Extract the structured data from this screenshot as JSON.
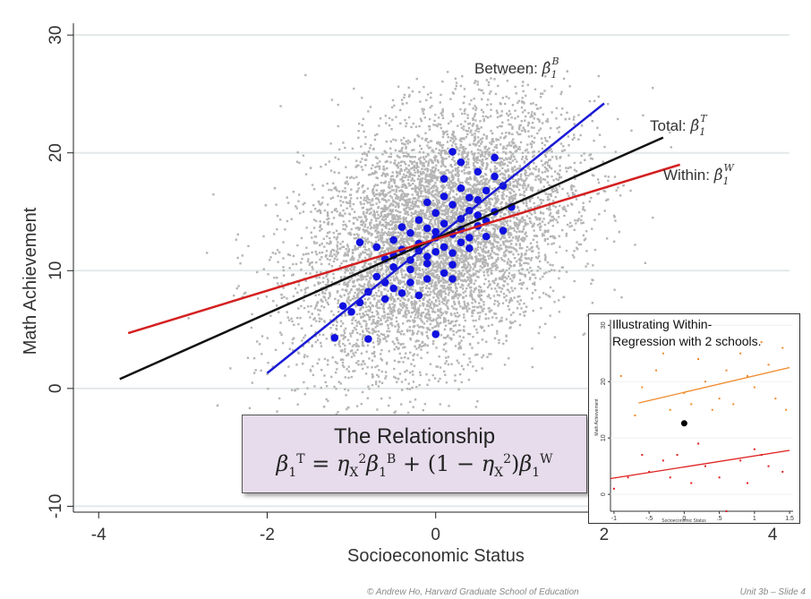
{
  "chart_data": {
    "type": "scatter",
    "xlabel": "Socioeconomic Status",
    "ylabel": "Math Achievement",
    "xlim": [
      -4.3,
      4.2
    ],
    "ylim": [
      -10.5,
      31
    ],
    "x_ticks": [
      -4,
      -2,
      0,
      2,
      4
    ],
    "y_ticks": [
      -10,
      0,
      10,
      20,
      30
    ],
    "x_tick_labels": [
      "-4",
      "-2",
      "0",
      "2",
      "4"
    ],
    "y_tick_labels": [
      "-10",
      "0",
      "10",
      "20",
      "30"
    ],
    "grid": "horizontal",
    "series": [
      {
        "kind": "student-scatter",
        "color": "#b5b5b5",
        "center": [
          0,
          12.8
        ],
        "approx_n": 7000
      },
      {
        "kind": "school-means",
        "color": "#1010e0",
        "points": [
          [
            -1.2,
            4.3
          ],
          [
            -0.8,
            4.2
          ],
          [
            0.0,
            4.6
          ],
          [
            -1.0,
            6.5
          ],
          [
            -0.9,
            7.3
          ],
          [
            -0.6,
            7.6
          ],
          [
            -0.5,
            8.5
          ],
          [
            -0.3,
            9.0
          ],
          [
            -0.1,
            9.3
          ],
          [
            0.1,
            9.8
          ],
          [
            0.2,
            10.5
          ],
          [
            -0.7,
            9.5
          ],
          [
            -0.5,
            10.3
          ],
          [
            -0.3,
            10.9
          ],
          [
            -0.1,
            11.2
          ],
          [
            0.0,
            11.6
          ],
          [
            0.1,
            12.0
          ],
          [
            0.3,
            12.4
          ],
          [
            0.4,
            12.8
          ],
          [
            -0.6,
            11.0
          ],
          [
            -0.4,
            11.8
          ],
          [
            -0.2,
            12.3
          ],
          [
            0.0,
            12.8
          ],
          [
            0.2,
            13.1
          ],
          [
            0.3,
            13.5
          ],
          [
            0.5,
            13.8
          ],
          [
            -0.3,
            13.2
          ],
          [
            -0.1,
            13.6
          ],
          [
            0.1,
            14.0
          ],
          [
            0.3,
            14.4
          ],
          [
            0.5,
            14.7
          ],
          [
            0.7,
            15.0
          ],
          [
            0.2,
            15.6
          ],
          [
            0.4,
            16.2
          ],
          [
            0.6,
            16.8
          ],
          [
            0.8,
            17.2
          ],
          [
            0.1,
            17.8
          ],
          [
            0.5,
            18.4
          ],
          [
            0.3,
            19.2
          ],
          [
            0.7,
            19.6
          ],
          [
            0.2,
            20.1
          ],
          [
            -0.9,
            12.4
          ],
          [
            -0.7,
            12.0
          ],
          [
            -0.5,
            12.6
          ],
          [
            -0.2,
            14.3
          ],
          [
            0.0,
            14.9
          ],
          [
            -0.4,
            13.7
          ],
          [
            0.6,
            14.2
          ],
          [
            0.9,
            15.4
          ],
          [
            -0.3,
            10.1
          ],
          [
            -0.1,
            10.6
          ],
          [
            0.2,
            11.5
          ],
          [
            0.4,
            11.9
          ],
          [
            -0.6,
            9.0
          ],
          [
            -0.8,
            8.2
          ],
          [
            0.6,
            12.9
          ],
          [
            0.8,
            13.4
          ],
          [
            0.1,
            16.3
          ],
          [
            -0.1,
            15.8
          ],
          [
            0.3,
            17.0
          ],
          [
            -0.2,
            7.9
          ],
          [
            0.2,
            9.3
          ],
          [
            -1.1,
            7.0
          ],
          [
            -0.4,
            8.1
          ],
          [
            0.4,
            15.1
          ],
          [
            0.0,
            13.3
          ],
          [
            -0.2,
            11.7
          ],
          [
            0.5,
            16.0
          ],
          [
            0.7,
            18.0
          ],
          [
            -0.5,
            11.3
          ]
        ]
      },
      {
        "name": "Between",
        "kind": "line",
        "color": "#1a1ad6",
        "from": [
          -2.0,
          1.3
        ],
        "to": [
          2.0,
          24.2
        ]
      },
      {
        "name": "Total",
        "kind": "line",
        "color": "#111111",
        "from": [
          -3.75,
          0.8
        ],
        "to": [
          2.7,
          21.3
        ]
      },
      {
        "name": "Within",
        "kind": "line",
        "color": "#d42020",
        "from": [
          -3.65,
          4.7
        ],
        "to": [
          2.9,
          19.0
        ]
      }
    ],
    "annotations": [
      {
        "text": "Between: ",
        "math": "β̂",
        "sub": "1",
        "sup": "B"
      },
      {
        "text": "Total: ",
        "math": "β̂",
        "sub": "1",
        "sup": "T"
      },
      {
        "text": "Within: ",
        "math": "β̂",
        "sub": "1",
        "sup": "W"
      }
    ]
  },
  "formula_box": {
    "title": "The Relationship",
    "parts": {
      "beta": "β",
      "one": "1",
      "T": "T",
      "eq": " = ",
      "eta": "η",
      "X": "X",
      "two": "2",
      "B": "B",
      "plus": " + (1 − ",
      "close": ")",
      "W": "W"
    }
  },
  "inset": {
    "title_line1": "Illustrating Within-",
    "title_line2": "Regression with 2 schools.",
    "xlabel": "Socioeconomic Status",
    "ylabel": "Math Achievement",
    "x_tick_labels": [
      "-1",
      "-.5",
      "0",
      ".5",
      "1",
      "1.5"
    ],
    "y_tick_labels": [
      "0",
      "10",
      "20",
      "30"
    ],
    "xlim": [
      -1.05,
      1.55
    ],
    "ylim": [
      -3,
      31
    ],
    "school_a_color": "#f08a2a",
    "school_b_color": "#e02020",
    "school_a_points": [
      [
        -0.9,
        21
      ],
      [
        -0.6,
        19
      ],
      [
        -0.4,
        22
      ],
      [
        -0.2,
        15
      ],
      [
        0.0,
        18
      ],
      [
        0.2,
        24
      ],
      [
        0.3,
        20
      ],
      [
        0.5,
        17
      ],
      [
        0.6,
        22
      ],
      [
        0.8,
        25
      ],
      [
        1.0,
        19
      ],
      [
        1.2,
        23
      ],
      [
        1.4,
        26
      ],
      [
        0.1,
        16
      ],
      [
        -0.7,
        14
      ],
      [
        0.9,
        21
      ],
      [
        1.1,
        27
      ],
      [
        0.4,
        15
      ],
      [
        -0.3,
        25
      ],
      [
        1.3,
        17
      ],
      [
        0.7,
        16
      ],
      [
        1.45,
        15
      ]
    ],
    "school_b_points": [
      [
        -1.0,
        1
      ],
      [
        -0.8,
        3
      ],
      [
        -0.5,
        4
      ],
      [
        -0.3,
        6
      ],
      [
        -0.1,
        7
      ],
      [
        0.1,
        2
      ],
      [
        0.3,
        5
      ],
      [
        0.5,
        3
      ],
      [
        0.8,
        6
      ],
      [
        1.0,
        8
      ],
      [
        1.2,
        5
      ],
      [
        1.4,
        4
      ],
      [
        -0.6,
        7
      ],
      [
        0.2,
        9
      ],
      [
        0.6,
        -3
      ],
      [
        0.9,
        2
      ],
      [
        1.1,
        7
      ],
      [
        -0.2,
        3
      ]
    ],
    "school_a_line": {
      "from": [
        -0.65,
        16.2
      ],
      "to": [
        1.5,
        22.5
      ]
    },
    "school_b_line": {
      "from": [
        -1.05,
        2.8
      ],
      "to": [
        1.5,
        7.8
      ]
    },
    "mean_point": [
      0.0,
      12.6
    ]
  },
  "footer": {
    "left": "© Andrew Ho, Harvard Graduate School of Education",
    "right": "Unit 3b – Slide 4"
  }
}
